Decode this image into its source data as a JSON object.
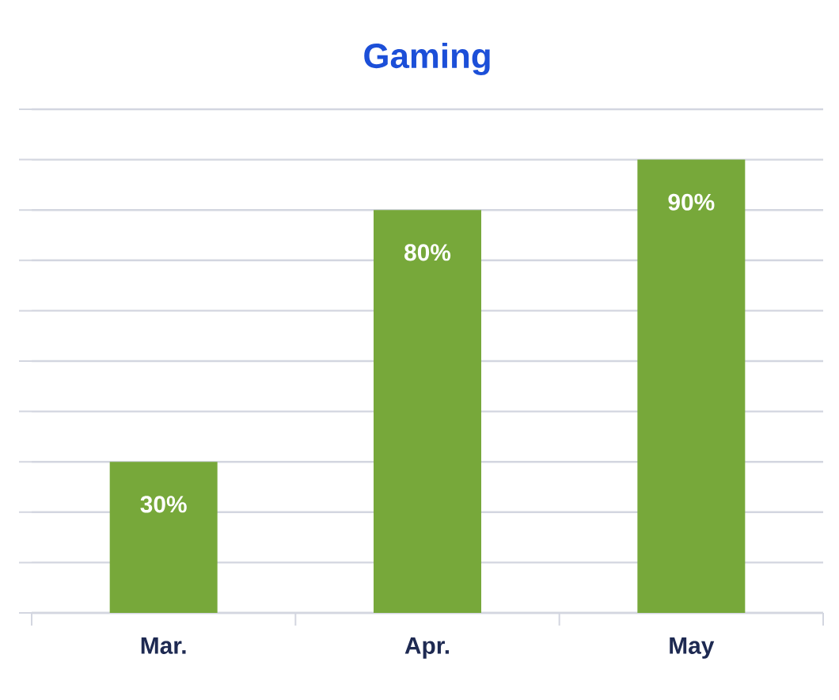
{
  "chart_data": {
    "type": "bar",
    "title": "Gaming",
    "categories": [
      "Mar.",
      "Apr.",
      "May"
    ],
    "values": [
      30,
      80,
      90
    ],
    "value_labels": [
      "30%",
      "80%",
      "90%"
    ],
    "color": "#77a83a",
    "ylim": [
      0,
      100
    ],
    "yticks": [
      {
        "value": 0,
        "label": null
      },
      {
        "value": 10,
        "label": null
      },
      {
        "value": 20,
        "label": null
      },
      {
        "value": 30,
        "label": null
      },
      {
        "value": 40,
        "label": null
      },
      {
        "value": 50,
        "label": null
      },
      {
        "value": 60,
        "label": null
      },
      {
        "value": 70,
        "label": null
      },
      {
        "value": 80,
        "label": null
      },
      {
        "value": 90,
        "label": null
      },
      {
        "value": 100,
        "label": null
      }
    ],
    "tick_labels": "x",
    "grid": "y"
  }
}
